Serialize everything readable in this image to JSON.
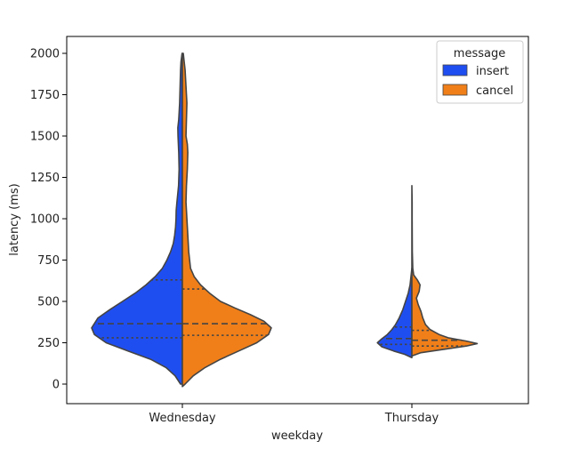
{
  "chart_data": {
    "type": "violin",
    "split": true,
    "xlabel": "weekday",
    "ylabel": "latency (ms)",
    "categories": [
      "Wednesday",
      "Thursday"
    ],
    "yticks": [
      0,
      250,
      500,
      750,
      1000,
      1250,
      1500,
      1750,
      2000
    ],
    "ylim": [
      -120,
      2100
    ],
    "grid": false,
    "legend": {
      "title": "message",
      "placement": "top-right",
      "entries": [
        "insert",
        "cancel"
      ]
    },
    "series": [
      {
        "name": "insert",
        "color": "#1f4ef0",
        "side": "left",
        "violins": [
          {
            "category": "Wednesday",
            "profile": [
              [
                0,
                0.02
              ],
              [
                50,
                0.08
              ],
              [
                100,
                0.18
              ],
              [
                150,
                0.35
              ],
              [
                200,
                0.6
              ],
              [
                250,
                0.84
              ],
              [
                300,
                0.97
              ],
              [
                340,
                1.0
              ],
              [
                400,
                0.93
              ],
              [
                450,
                0.8
              ],
              [
                500,
                0.66
              ],
              [
                550,
                0.52
              ],
              [
                600,
                0.4
              ],
              [
                650,
                0.3
              ],
              [
                700,
                0.22
              ],
              [
                750,
                0.17
              ],
              [
                800,
                0.13
              ],
              [
                850,
                0.1
              ],
              [
                900,
                0.085
              ],
              [
                950,
                0.075
              ],
              [
                1000,
                0.07
              ],
              [
                1050,
                0.068
              ],
              [
                1100,
                0.06
              ],
              [
                1200,
                0.042
              ],
              [
                1300,
                0.036
              ],
              [
                1400,
                0.04
              ],
              [
                1500,
                0.048
              ],
              [
                1550,
                0.05
              ],
              [
                1600,
                0.04
              ],
              [
                1700,
                0.03
              ],
              [
                1800,
                0.025
              ],
              [
                1900,
                0.02
              ],
              [
                1950,
                0.015
              ],
              [
                2000,
                0.003
              ]
            ],
            "quartiles": [
              280,
              365,
              630
            ]
          },
          {
            "category": "Thursday",
            "profile": [
              [
                160,
                0.0
              ],
              [
                180,
                0.08
              ],
              [
                200,
                0.2
              ],
              [
                225,
                0.33
              ],
              [
                250,
                0.38
              ],
              [
                270,
                0.34
              ],
              [
                300,
                0.27
              ],
              [
                330,
                0.22
              ],
              [
                360,
                0.18
              ],
              [
                400,
                0.14
              ],
              [
                450,
                0.1
              ],
              [
                500,
                0.07
              ],
              [
                550,
                0.04
              ],
              [
                600,
                0.02
              ],
              [
                650,
                0.01
              ],
              [
                700,
                0.0
              ]
            ],
            "quartiles": [
              240,
              275,
              345
            ]
          }
        ]
      },
      {
        "name": "cancel",
        "color": "#f07f19",
        "side": "right",
        "violins": [
          {
            "category": "Wednesday",
            "profile": [
              [
                -15,
                0.0
              ],
              [
                0,
                0.03
              ],
              [
                50,
                0.12
              ],
              [
                100,
                0.25
              ],
              [
                150,
                0.42
              ],
              [
                200,
                0.62
              ],
              [
                250,
                0.82
              ],
              [
                300,
                0.95
              ],
              [
                340,
                0.98
              ],
              [
                380,
                0.9
              ],
              [
                420,
                0.75
              ],
              [
                460,
                0.58
              ],
              [
                500,
                0.42
              ],
              [
                550,
                0.3
              ],
              [
                600,
                0.2
              ],
              [
                650,
                0.13
              ],
              [
                700,
                0.09
              ],
              [
                800,
                0.07
              ],
              [
                900,
                0.06
              ],
              [
                1000,
                0.05
              ],
              [
                1100,
                0.04
              ],
              [
                1200,
                0.045
              ],
              [
                1300,
                0.055
              ],
              [
                1400,
                0.06
              ],
              [
                1450,
                0.055
              ],
              [
                1500,
                0.04
              ],
              [
                1600,
                0.045
              ],
              [
                1700,
                0.05
              ],
              [
                1800,
                0.04
              ],
              [
                1900,
                0.03
              ],
              [
                1950,
                0.02
              ],
              [
                2000,
                0.01
              ]
            ],
            "quartiles": [
              295,
              365,
              575
            ]
          },
          {
            "category": "Thursday",
            "profile": [
              [
                170,
                0.0
              ],
              [
                190,
                0.1
              ],
              [
                210,
                0.35
              ],
              [
                230,
                0.6
              ],
              [
                245,
                0.72
              ],
              [
                260,
                0.6
              ],
              [
                280,
                0.4
              ],
              [
                300,
                0.3
              ],
              [
                330,
                0.2
              ],
              [
                360,
                0.15
              ],
              [
                400,
                0.12
              ],
              [
                440,
                0.1
              ],
              [
                480,
                0.07
              ],
              [
                520,
                0.05
              ],
              [
                560,
                0.08
              ],
              [
                600,
                0.09
              ],
              [
                630,
                0.06
              ],
              [
                660,
                0.02
              ],
              [
                700,
                0.01
              ],
              [
                800,
                0.005
              ],
              [
                900,
                0.004
              ],
              [
                1000,
                0.003
              ],
              [
                1100,
                0.003
              ],
              [
                1200,
                0.0
              ]
            ],
            "quartiles": [
              230,
              265,
              325
            ]
          }
        ]
      }
    ]
  }
}
